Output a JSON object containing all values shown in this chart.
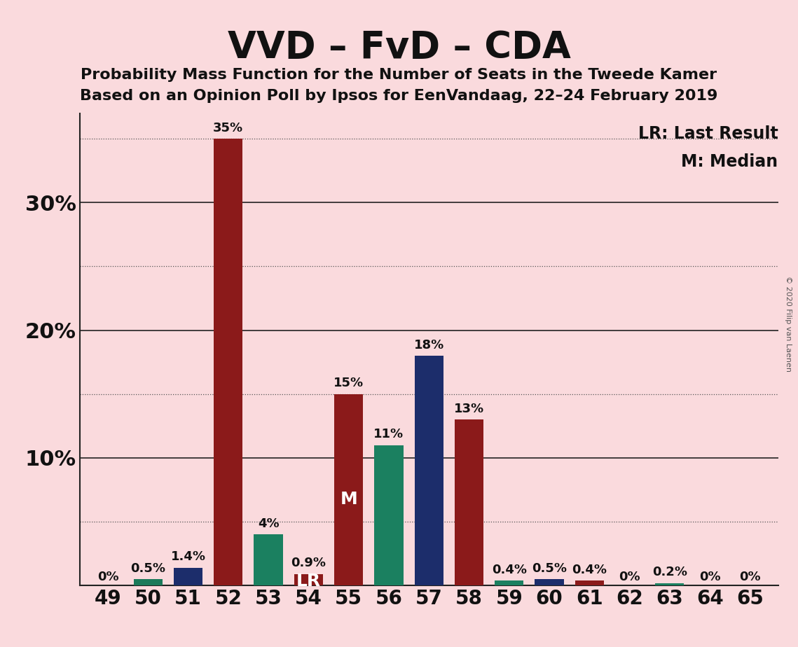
{
  "title": "VVD – FvD – CDA",
  "subtitle1": "Probability Mass Function for the Number of Seats in the Tweede Kamer",
  "subtitle2": "Based on an Opinion Poll by Ipsos for EenVandaag, 22–24 February 2019",
  "copyright": "© 2020 Filip van Laenen",
  "seats": [
    49,
    50,
    51,
    52,
    53,
    54,
    55,
    56,
    57,
    58,
    59,
    60,
    61,
    62,
    63,
    64,
    65
  ],
  "values": [
    0.0,
    0.5,
    1.4,
    35.0,
    4.0,
    0.9,
    15.0,
    11.0,
    18.0,
    13.0,
    0.4,
    0.5,
    0.4,
    0.0,
    0.2,
    0.0,
    0.0
  ],
  "labels": [
    "0%",
    "0.5%",
    "1.4%",
    "35%",
    "4%",
    "0.9%",
    "15%",
    "11%",
    "18%",
    "13%",
    "0.4%",
    "0.5%",
    "0.4%",
    "0%",
    "0.2%",
    "0%",
    "0%"
  ],
  "colors": [
    "#8B1A1A",
    "#1B7A5A",
    "#1C2D6B",
    "#8B1A1A",
    "#1B8060",
    "#8B1A1A",
    "#8B1A1A",
    "#1B8060",
    "#1C2D6B",
    "#8B1A1A",
    "#1B8060",
    "#1C2D6B",
    "#8B1A1A",
    "#1C2D6B",
    "#1B8060",
    "#1C2D6B",
    "#8B1A1A"
  ],
  "background_color": "#FADADD",
  "lr_seat": 54,
  "median_seat": 55,
  "ylim_max": 37,
  "solid_yticks": [
    10,
    20,
    30
  ],
  "dotted_yticks": [
    5,
    15,
    25,
    35
  ],
  "ytick_labels_solid": [
    "10%",
    "20%",
    "30%"
  ],
  "bar_width": 0.72
}
